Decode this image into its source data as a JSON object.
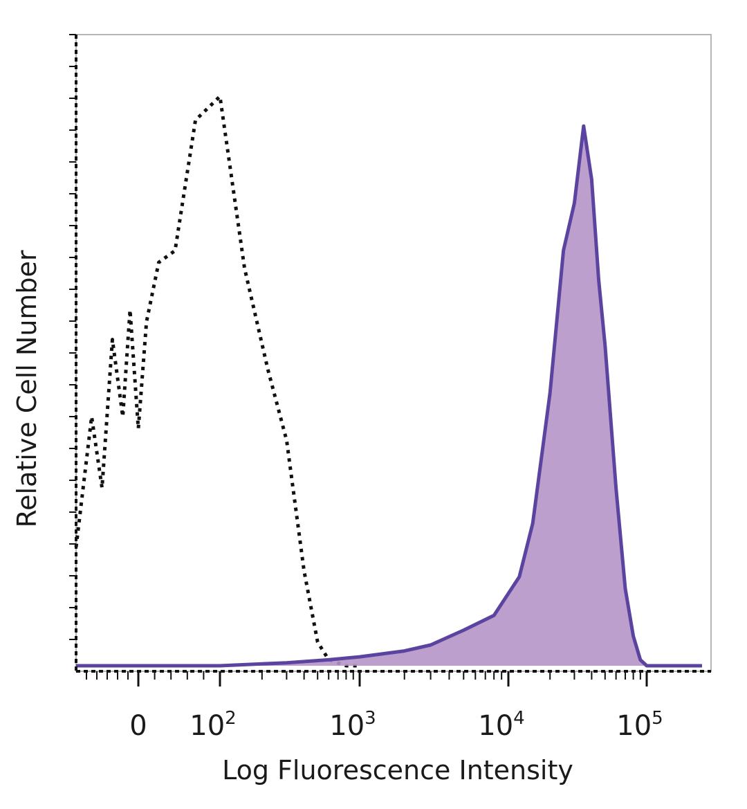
{
  "chart_data": {
    "type": "area",
    "title": "",
    "xlabel": "Log Fluorescence Intensity",
    "ylabel": "Relative Cell Number",
    "x_scale": "biexponential (log)",
    "xlim": [
      -60,
      200000
    ],
    "ylim": [
      0,
      100
    ],
    "y_ticks_labeled": false,
    "grid": false,
    "legend": "none",
    "x_ticks": [
      {
        "value": 0,
        "label": "0"
      },
      {
        "value": 100,
        "base": "10",
        "exp": "2"
      },
      {
        "value": 1000,
        "base": "10",
        "exp": "3"
      },
      {
        "value": 10000,
        "base": "10",
        "exp": "4"
      },
      {
        "value": 100000,
        "base": "10",
        "exp": "5"
      }
    ],
    "colors": {
      "control_line": "#111111",
      "stained_line": "#5a44a0",
      "stained_fill": "#b595c8",
      "axis": "#111111",
      "frame": "#b5b5b5"
    },
    "series": [
      {
        "style": "dotted-black-outline",
        "x": [
          -60,
          -45,
          -35,
          -25,
          -15,
          -8,
          0,
          10,
          25,
          45,
          70,
          100,
          150,
          220,
          300,
          400,
          500,
          600,
          800,
          1000
        ],
        "y": [
          20,
          42,
          30,
          55,
          42,
          60,
          40,
          58,
          68,
          70,
          92,
          96,
          67,
          50,
          38,
          16,
          4,
          1,
          0,
          0
        ]
      },
      {
        "style": "purple-filled",
        "x": [
          -60,
          0,
          100,
          300,
          600,
          1000,
          2000,
          3000,
          5000,
          8000,
          12000,
          15000,
          20000,
          25000,
          30000,
          35000,
          40000,
          45000,
          50000,
          60000,
          70000,
          80000,
          90000,
          100000,
          200000
        ],
        "y": [
          0,
          0,
          0,
          0.5,
          1,
          1.5,
          2.5,
          3.5,
          6,
          8.5,
          15,
          24,
          46,
          70,
          78,
          91,
          82,
          65,
          54,
          30,
          13,
          5,
          1,
          0,
          0
        ]
      }
    ]
  }
}
